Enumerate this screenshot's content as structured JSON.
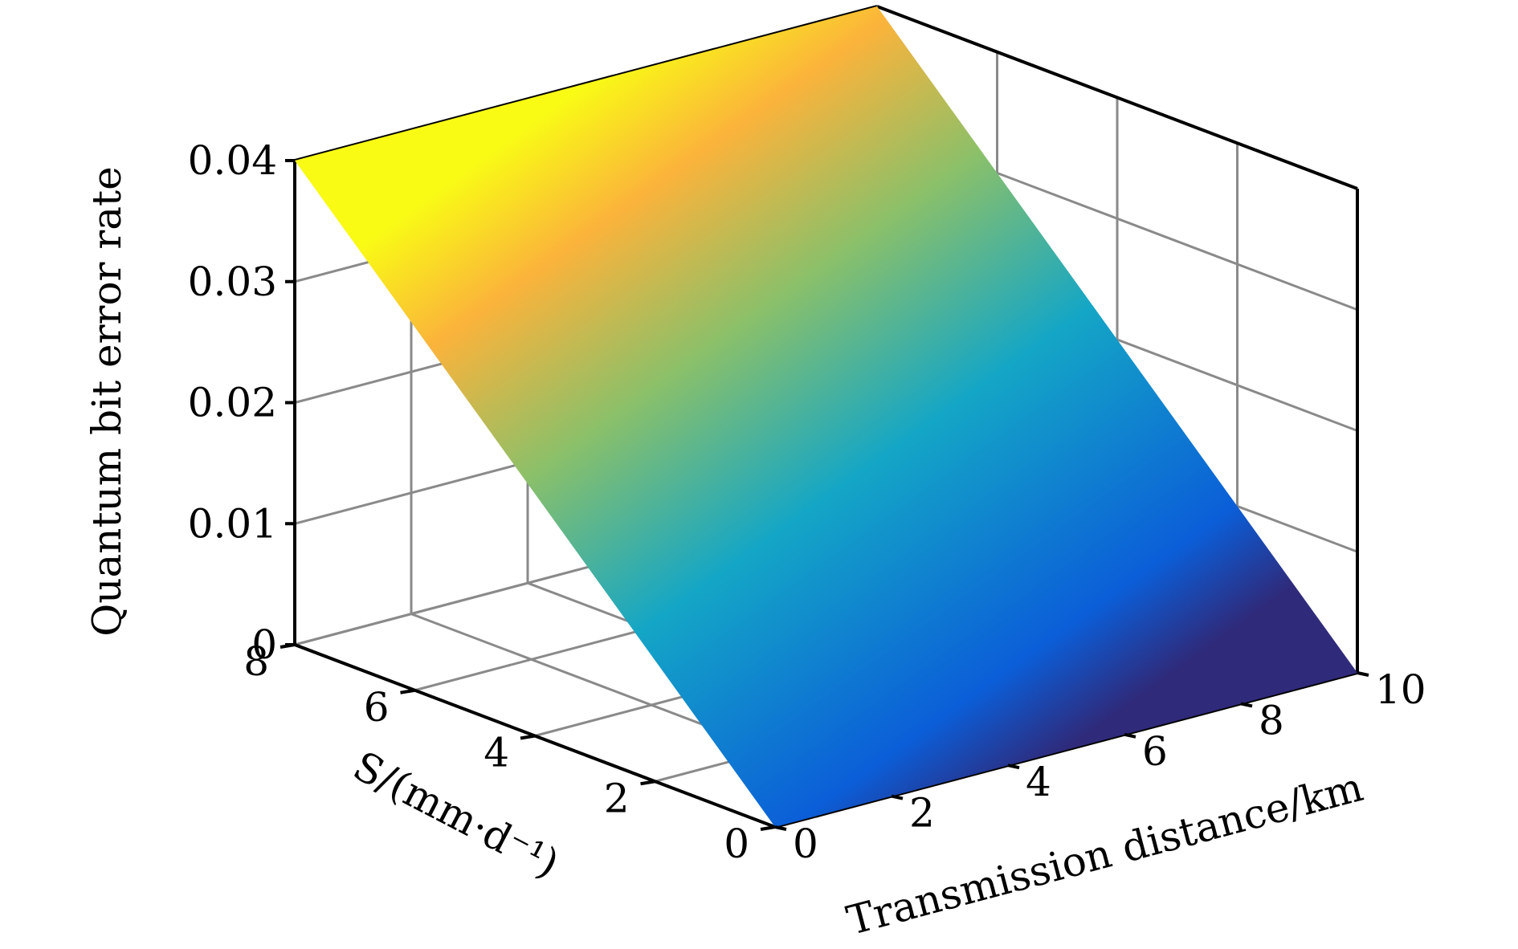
{
  "chart_data": {
    "type": "surface",
    "title": "",
    "xlabel": "Transmission distance/km",
    "ylabel": "S/(mm·d⁻¹)",
    "zlabel": "Quantum bit error rate",
    "x_range": [
      0,
      10
    ],
    "y_range": [
      0,
      8
    ],
    "z_range": [
      0,
      0.04
    ],
    "x_ticks": [
      0,
      2,
      4,
      6,
      8,
      10
    ],
    "y_ticks": [
      0,
      2,
      4,
      6,
      8
    ],
    "z_ticks": [
      0,
      0.01,
      0.02,
      0.03,
      0.04
    ],
    "x_tick_labels": [
      "0",
      "2",
      "4",
      "6",
      "8",
      "10"
    ],
    "y_tick_labels": [
      "0",
      "2",
      "4",
      "6",
      "8"
    ],
    "z_tick_labels": [
      "0",
      "0.01",
      "0.02",
      "0.03",
      "0.04"
    ],
    "grid": true,
    "colormap": "parula",
    "surface": {
      "description_of_values": "QBER depends only on S; constant along transmission distance",
      "corner_values": [
        {
          "x": 0,
          "y": 0,
          "z": 0.0
        },
        {
          "x": 10,
          "y": 0,
          "z": 0.0
        },
        {
          "x": 0,
          "y": 8,
          "z": 0.04
        },
        {
          "x": 10,
          "y": 8,
          "z": 0.04
        }
      ]
    },
    "colors": {
      "low": "#2f2a7a",
      "mid_low": "#0b5ed8",
      "mid": "#14a6c6",
      "mid_high": "#8ac06a",
      "high_mid": "#fbb33b",
      "high": "#f9fb15",
      "grid": "#8a8a8a",
      "axis": "#000000"
    }
  }
}
